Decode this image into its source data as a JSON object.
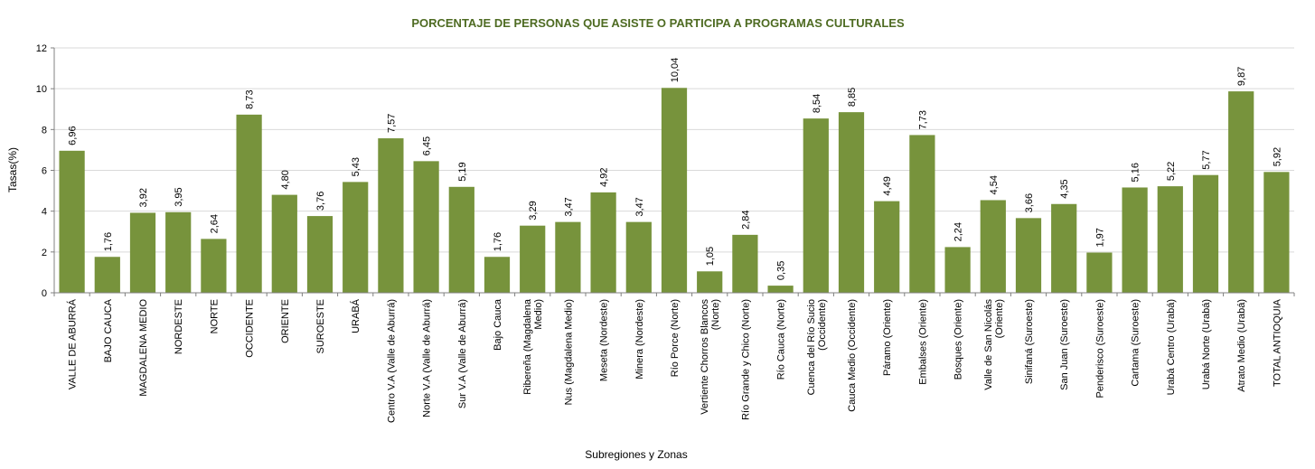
{
  "chart_data": {
    "type": "bar",
    "title": "PORCENTAJE DE PERSONAS QUE ASISTE O PARTICIPA A PROGRAMAS CULTURALES",
    "xlabel": "Subregiones y Zonas",
    "ylabel": "Tasas(%)",
    "ylim": [
      0,
      12
    ],
    "yticks": [
      0,
      2,
      4,
      6,
      8,
      10,
      12
    ],
    "grid": true,
    "bar_color": "#77933c",
    "title_color": "#4e6b22",
    "categories": [
      "VALLE DE ABURRÁ",
      "BAJO CAUCA",
      "MAGDALENA MEDIO",
      "NORDESTE",
      "NORTE",
      "OCCIDENTE",
      "ORIENTE",
      "SUROESTE",
      "URABÁ",
      "Centro V.A (Valle de Aburrá)",
      "Norte V.A (Valle de Aburrá)",
      "Sur V.A (Valle de Aburrá)",
      "Bajo Cauca",
      "Ribereña (Magdalena|Medio)",
      "Nus (Magdalena Medio)",
      "Meseta (Nordeste)",
      "Minera (Nordeste)",
      "Río Porce (Norte)",
      "Vertiente Chorros Blancos|(Norte)",
      "Río Grande y Chico (Norte)",
      "Río Cauca (Norte)",
      "Cuenca del Río Sucio|(Occidente)",
      "Cauca Medio (Occidente)",
      "Páramo (Oriente)",
      "Embalses (Oriente)",
      "Bosques (Oriente)",
      "Valle de San Nicolás|(Oriente)",
      "Sinifaná (Suroeste)",
      "San Juan (Suroeste)",
      "Penderisco (Suroeste)",
      "Cartama (Suroeste)",
      "Urabá Centro (Urabá)",
      "Urabá Norte (Urabá)",
      "Atrato Medio (Urabá)",
      "TOTAL ANTIOQUIA"
    ],
    "values": [
      6.96,
      1.76,
      3.92,
      3.95,
      2.64,
      8.73,
      4.8,
      3.76,
      5.43,
      7.57,
      6.45,
      5.19,
      1.76,
      3.29,
      3.47,
      4.92,
      3.47,
      10.04,
      1.05,
      2.84,
      0.35,
      8.54,
      8.85,
      4.49,
      7.73,
      2.24,
      4.54,
      3.66,
      4.35,
      1.97,
      5.16,
      5.22,
      5.77,
      9.87,
      5.92
    ],
    "value_labels": [
      "6,96",
      "1,76",
      "3,92",
      "3,95",
      "2,64",
      "8,73",
      "4,80",
      "3,76",
      "5,43",
      "7,57",
      "6,45",
      "5,19",
      "1,76",
      "3,29",
      "3,47",
      "4,92",
      "3,47",
      "10,04",
      "1,05",
      "2,84",
      "0,35",
      "8,54",
      "8,85",
      "4,49",
      "7,73",
      "2,24",
      "4,54",
      "3,66",
      "4,35",
      "1,97",
      "5,16",
      "5,22",
      "5,77",
      "9,87",
      "5,92"
    ]
  }
}
